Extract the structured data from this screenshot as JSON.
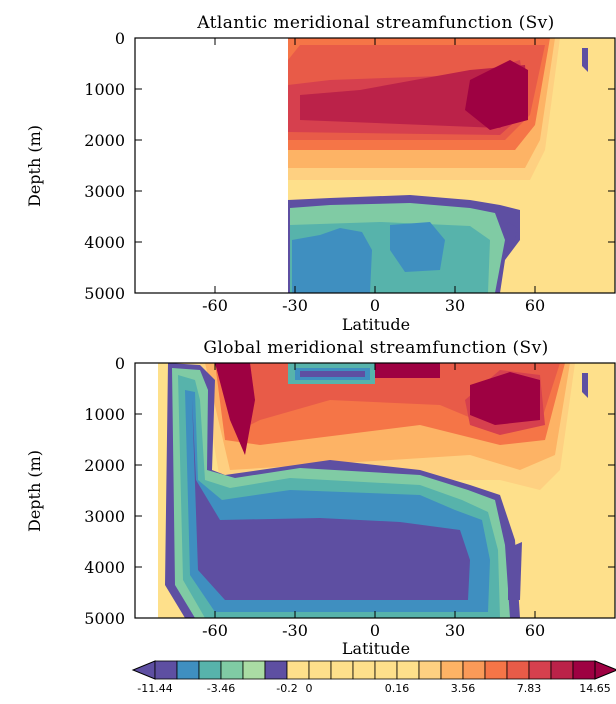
{
  "chart_data": [
    {
      "type": "heatmap",
      "title": "Atlantic meridional streamfunction (Sv)",
      "xlabel": "Latitude",
      "ylabel": "Depth (m)",
      "xlim": [
        -90,
        90
      ],
      "ylim": [
        0,
        5000
      ],
      "x_ticks": [
        -60,
        -30,
        0,
        30,
        60
      ],
      "y_ticks": [
        0,
        1000,
        2000,
        3000,
        4000,
        5000
      ],
      "data_extent_lat": [
        -34,
        90
      ],
      "grid": false
    },
    {
      "type": "heatmap",
      "title": "Global meridional streamfunction (Sv)",
      "xlabel": "Latitude",
      "ylabel": "Depth (m)",
      "xlim": [
        -90,
        90
      ],
      "ylim": [
        0,
        5000
      ],
      "x_ticks": [
        -60,
        -30,
        0,
        30,
        60
      ],
      "y_ticks": [
        0,
        1000,
        2000,
        3000,
        4000,
        5000
      ],
      "data_extent_lat": [
        -78,
        90
      ],
      "grid": false
    }
  ],
  "colorbar": {
    "label_values": [
      "-11.44",
      "-3.46",
      "-0.2",
      "0",
      "0.16",
      "3.56",
      "7.83",
      "14.65"
    ],
    "colors": [
      "#5e4fa2",
      "#3f8fc0",
      "#57b3ab",
      "#80cba4",
      "#aadca4",
      "#5e4fa2",
      "#fee08b",
      "#fee08b",
      "#fee08b",
      "#fee08b",
      "#fee08b",
      "#fee08b",
      "#fed081",
      "#fdb365",
      "#fa9a58",
      "#f57547",
      "#e85b48",
      "#d6404e",
      "#bb2249",
      "#9e0142"
    ],
    "extend_min_color": "#5e4fa2",
    "extend_max_color": "#9e0142"
  }
}
